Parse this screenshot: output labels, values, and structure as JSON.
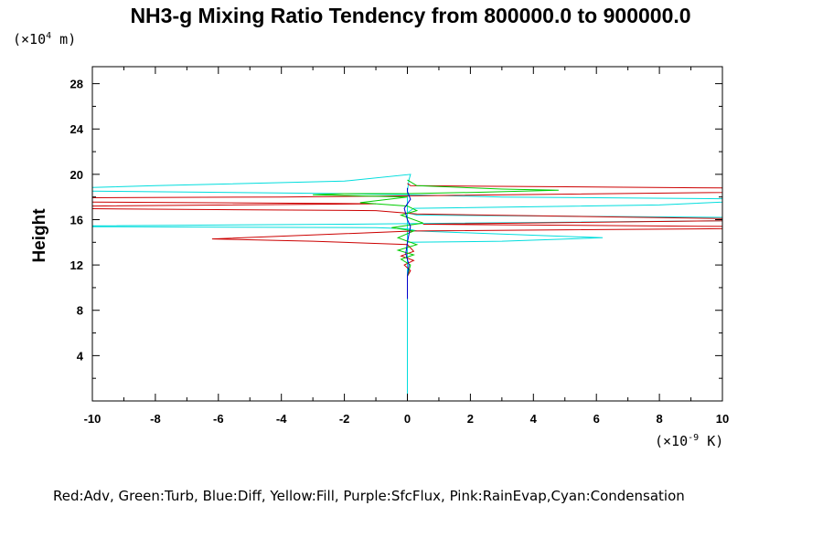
{
  "chart_data": {
    "type": "line",
    "title": "NH3-g Mixing Ratio Tendency from 800000.0 to 900000.0",
    "xunit_prefix": "(×10",
    "xunit_exp": "-9",
    "xunit_suffix": " K)",
    "yunit_prefix": "(×10",
    "yunit_exp": "4",
    "yunit_suffix": " m)",
    "ylabel": "Height",
    "xlim": [
      -10,
      10
    ],
    "ylim": [
      0,
      29.5
    ],
    "xticks": [
      -10,
      -8,
      -6,
      -4,
      -2,
      0,
      2,
      4,
      6,
      8,
      10
    ],
    "yticks": [
      4,
      8,
      12,
      16,
      20,
      24,
      28
    ],
    "legend_text": "Red:Adv, Green:Turb, Blue:Diff, Yellow:Fill, Purple:SfcFlux, Pink:RainEvap,Cyan:Condensation",
    "colors": {
      "Adv": "#cc0000",
      "Turb": "#00cc00",
      "Diff": "#0000cc",
      "Fill": "#cccc00",
      "SfcFlux": "#aa00aa",
      "RainEvap": "#ff88aa",
      "Condensation": "#00dddd"
    },
    "series": [
      {
        "key": "Condensation",
        "points": [
          [
            0,
            0.2
          ],
          [
            0,
            8
          ],
          [
            0,
            12
          ],
          [
            0,
            18.5
          ],
          [
            0.05,
            19.5
          ],
          [
            0.1,
            20
          ],
          [
            -2,
            19.4
          ],
          [
            -8,
            19
          ],
          [
            -13,
            18.6
          ],
          [
            -2,
            18.3
          ],
          [
            0.1,
            18.2
          ],
          [
            3,
            18
          ],
          [
            12,
            17.8
          ],
          [
            8,
            17.3
          ],
          [
            0.2,
            17
          ],
          [
            0,
            16.6
          ],
          [
            0.3,
            16.4
          ],
          [
            10,
            16.2
          ],
          [
            10,
            15.9
          ],
          [
            -2,
            15.6
          ],
          [
            -13,
            15.4
          ],
          [
            -1,
            15.3
          ],
          [
            0,
            15.2
          ],
          [
            0.3,
            15
          ],
          [
            6.2,
            14.4
          ],
          [
            3,
            14.1
          ],
          [
            0,
            14
          ],
          [
            0,
            12
          ],
          [
            0,
            0.2
          ]
        ]
      },
      {
        "key": "Adv",
        "points": [
          [
            0,
            19.2
          ],
          [
            0.1,
            19
          ],
          [
            10,
            18.8
          ],
          [
            10,
            18.4
          ],
          [
            0.2,
            18.1
          ],
          [
            -4,
            18
          ],
          [
            -13,
            17.9
          ],
          [
            -13,
            17.6
          ],
          [
            -1,
            17.4
          ],
          [
            -10,
            17.2
          ],
          [
            -12,
            17
          ],
          [
            -1,
            16.8
          ],
          [
            0.3,
            16.5
          ],
          [
            10,
            16.1
          ],
          [
            10,
            15.9
          ],
          [
            0.5,
            15.6
          ],
          [
            10,
            15.4
          ],
          [
            10,
            15.2
          ],
          [
            0.2,
            15
          ],
          [
            -6.2,
            14.3
          ],
          [
            -3,
            14.1
          ],
          [
            0,
            13.8
          ],
          [
            0.2,
            13.2
          ],
          [
            -0.2,
            12.8
          ],
          [
            0.2,
            12.4
          ],
          [
            -0.1,
            12
          ],
          [
            0.1,
            11.5
          ],
          [
            0,
            11
          ]
        ]
      },
      {
        "key": "Turb",
        "points": [
          [
            0,
            19.5
          ],
          [
            0.3,
            19
          ],
          [
            3,
            18.7
          ],
          [
            4.8,
            18.6
          ],
          [
            2,
            18.4
          ],
          [
            0,
            18.3
          ],
          [
            -2,
            18.3
          ],
          [
            -3,
            18.2
          ],
          [
            0,
            18
          ],
          [
            -1.5,
            17.5
          ],
          [
            0,
            17.2
          ],
          [
            0.3,
            16.8
          ],
          [
            -0.2,
            16.4
          ],
          [
            0.5,
            15.7
          ],
          [
            -0.5,
            15.3
          ],
          [
            0.2,
            15
          ],
          [
            -0.3,
            14.4
          ],
          [
            0.3,
            13.8
          ],
          [
            -0.3,
            13.3
          ],
          [
            0.2,
            12.9
          ],
          [
            -0.2,
            12.5
          ],
          [
            0.1,
            12
          ],
          [
            0,
            11
          ]
        ]
      },
      {
        "key": "Diff",
        "points": [
          [
            0,
            9
          ],
          [
            0,
            11
          ],
          [
            0.05,
            12
          ],
          [
            -0.05,
            13
          ],
          [
            0,
            14
          ],
          [
            0.1,
            15.4
          ],
          [
            0,
            16
          ],
          [
            -0.1,
            17
          ],
          [
            0.1,
            17.8
          ],
          [
            0,
            18.5
          ],
          [
            0,
            18.8
          ]
        ]
      }
    ]
  }
}
